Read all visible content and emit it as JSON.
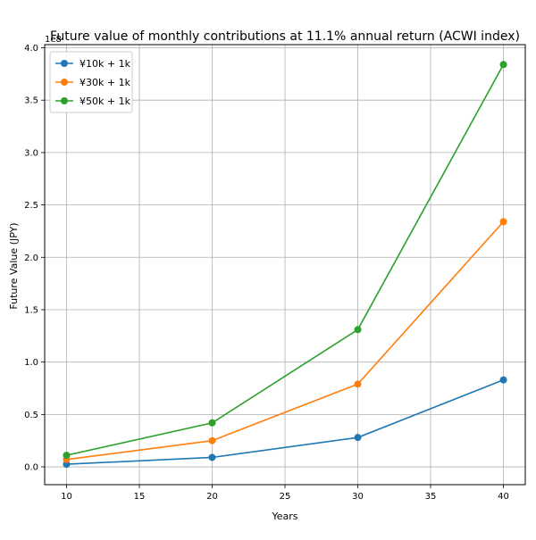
{
  "chart_data": {
    "type": "line",
    "title": "Future value of monthly contributions at 11.1% annual return (ACWI index)",
    "xlabel": "Years",
    "ylabel": "Future Value (JPY)",
    "y_offset_label": "1e8",
    "x": [
      10,
      20,
      30,
      40
    ],
    "xlim": [
      8.5,
      41.5
    ],
    "ylim": [
      -0.17,
      4.03
    ],
    "xticks": [
      10,
      15,
      20,
      25,
      30,
      35,
      40
    ],
    "yticks": [
      0.0,
      0.5,
      1.0,
      1.5,
      2.0,
      2.5,
      3.0,
      3.5,
      4.0
    ],
    "ytick_labels": [
      "0.0",
      "0.5",
      "1.0",
      "1.5",
      "2.0",
      "2.5",
      "3.0",
      "3.5",
      "4.0"
    ],
    "y_unit_multiplier": "1e8",
    "grid": true,
    "legend_position": "top-left",
    "series": [
      {
        "name": "¥10k + 1k",
        "color": "#1f77b4",
        "values": [
          0.025,
          0.09,
          0.28,
          0.83
        ]
      },
      {
        "name": "¥30k + 1k",
        "color": "#ff7f0e",
        "values": [
          0.07,
          0.25,
          0.79,
          2.34
        ]
      },
      {
        "name": "¥50k + 1k",
        "color": "#2ca02c",
        "values": [
          0.11,
          0.42,
          1.31,
          3.84
        ]
      }
    ]
  }
}
